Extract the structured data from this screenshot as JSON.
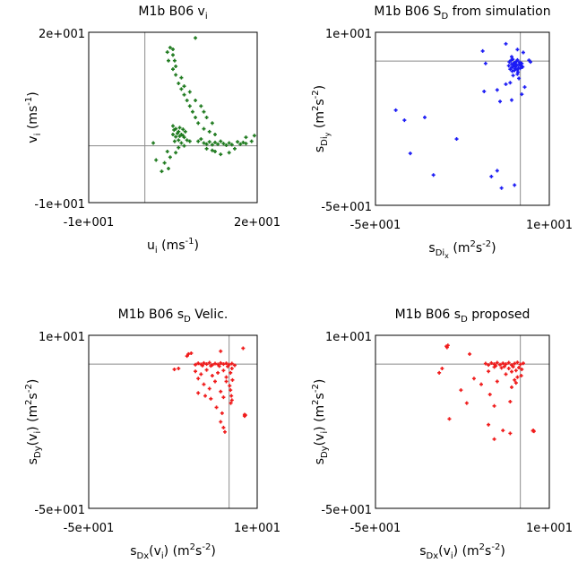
{
  "chart_data": [
    {
      "type": "scatter",
      "title": "M1b B06 vᵢ",
      "xlabel": "uᵢ (ms⁻¹)",
      "ylabel": "vᵢ (ms⁻¹)",
      "xlim": [
        -10,
        20
      ],
      "ylim": [
        -10,
        20
      ],
      "x_ticks": [
        "-1e+001",
        "2e+001"
      ],
      "y_ticks": [
        "-1e+001",
        "2e+001"
      ],
      "ref_lines": {
        "x": 0,
        "y": 0
      },
      "color": "#1e7a1e",
      "points": [
        [
          5.0,
          17.0
        ],
        [
          5.0,
          16.0
        ],
        [
          5.3,
          15.0
        ],
        [
          5.0,
          13.5
        ],
        [
          5.5,
          12.5
        ],
        [
          6.0,
          11.0
        ],
        [
          6.5,
          10.0
        ],
        [
          7.0,
          9.0
        ],
        [
          7.5,
          8.0
        ],
        [
          8.0,
          7.0
        ],
        [
          8.5,
          6.0
        ],
        [
          9.0,
          5.0
        ],
        [
          9.5,
          4.0
        ],
        [
          10.5,
          3.0
        ],
        [
          11.5,
          2.5
        ],
        [
          12.5,
          2.0
        ],
        [
          9.0,
          19.0
        ],
        [
          4.5,
          17.3
        ],
        [
          4.0,
          16.5
        ],
        [
          4.2,
          15.0
        ],
        [
          5.5,
          14.0
        ],
        [
          6.5,
          12.0
        ],
        [
          7.0,
          10.5
        ],
        [
          8.0,
          9.5
        ],
        [
          9.0,
          8.0
        ],
        [
          10.0,
          7.0
        ],
        [
          10.5,
          6.0
        ],
        [
          11.0,
          5.0
        ],
        [
          12.0,
          4.0
        ],
        [
          5.0,
          3.5
        ],
        [
          5.5,
          3.0
        ],
        [
          6.0,
          2.5
        ],
        [
          6.5,
          2.0
        ],
        [
          7.0,
          1.5
        ],
        [
          5.2,
          2.8
        ],
        [
          5.8,
          2.2
        ],
        [
          6.2,
          3.2
        ],
        [
          6.8,
          1.8
        ],
        [
          7.2,
          2.5
        ],
        [
          5.5,
          1.6
        ],
        [
          6.0,
          1.0
        ],
        [
          5.3,
          0.8
        ],
        [
          6.5,
          0.5
        ],
        [
          7.5,
          1.0
        ],
        [
          8.0,
          0.8
        ],
        [
          6.2,
          1.7
        ],
        [
          6.8,
          2.9
        ],
        [
          5.0,
          2.0
        ],
        [
          9.5,
          0.8
        ],
        [
          10.5,
          0.5
        ],
        [
          11.0,
          0.3
        ],
        [
          11.5,
          0.7
        ],
        [
          12.0,
          0.2
        ],
        [
          12.5,
          0.6
        ],
        [
          13.0,
          0.3
        ],
        [
          13.5,
          0.8
        ],
        [
          14.0,
          0.4
        ],
        [
          14.5,
          0.1
        ],
        [
          15.0,
          0.5
        ],
        [
          15.5,
          0.2
        ],
        [
          16.5,
          0.7
        ],
        [
          17.0,
          0.3
        ],
        [
          17.5,
          0.6
        ],
        [
          18.0,
          0.4
        ],
        [
          11.0,
          -0.5
        ],
        [
          12.5,
          -1.0
        ],
        [
          13.5,
          -1.5
        ],
        [
          15.0,
          -1.2
        ],
        [
          16.0,
          -0.5
        ],
        [
          12.0,
          -0.8
        ],
        [
          19.5,
          1.8
        ],
        [
          18.0,
          1.5
        ],
        [
          19.0,
          0.8
        ],
        [
          10.0,
          1.2
        ],
        [
          3.0,
          -4.5
        ],
        [
          3.5,
          -3.0
        ],
        [
          4.5,
          -2.0
        ],
        [
          4.0,
          -1.0
        ],
        [
          1.5,
          0.5
        ],
        [
          2.0,
          -2.5
        ],
        [
          4.2,
          -4.0
        ],
        [
          5.5,
          -1.2
        ],
        [
          7.0,
          0.0
        ],
        [
          6.0,
          -0.3
        ]
      ]
    },
    {
      "type": "scatter",
      "title": "M1b B06 S_D from simulation",
      "title_main": "M1b B06 S",
      "title_sub": "D",
      "title_tail": " from simulation",
      "xlabel": "s_Di_x (m²s⁻²)",
      "ylabel": "s_Di_y (m²s⁻²)",
      "xlim": [
        -50,
        10
      ],
      "ylim": [
        -50,
        10
      ],
      "x_ticks": [
        "-5e+001",
        "1e+001"
      ],
      "y_ticks": [
        "-5e+001",
        "1e+001"
      ],
      "ref_lines": {
        "x": 0,
        "y": 0
      },
      "color": "#1b1bf5",
      "points": [
        [
          -3.0,
          -1.0
        ],
        [
          -2.5,
          -2.0
        ],
        [
          -2.0,
          -0.5
        ],
        [
          -1.5,
          -1.8
        ],
        [
          -1.0,
          -3.0
        ],
        [
          -0.5,
          -1.2
        ],
        [
          0.0,
          -2.5
        ],
        [
          0.5,
          -0.8
        ],
        [
          -3.5,
          -2.8
        ],
        [
          -2.8,
          -3.5
        ],
        [
          -1.8,
          -2.6
        ],
        [
          -1.2,
          0.0
        ],
        [
          -0.8,
          -3.8
        ],
        [
          0.3,
          -1.6
        ],
        [
          -2.2,
          -1.3
        ],
        [
          -1.6,
          -0.9
        ],
        [
          -3.2,
          0.3
        ],
        [
          -0.2,
          -0.4
        ],
        [
          -2.6,
          0.6
        ],
        [
          -1.0,
          0.4
        ],
        [
          -3.8,
          -0.3
        ],
        [
          -4.0,
          -1.6
        ],
        [
          -2.0,
          -3.2
        ],
        [
          0.8,
          -2.0
        ],
        [
          -0.6,
          -2.4
        ],
        [
          -1.4,
          -1.5
        ],
        [
          -3.0,
          -2.2
        ],
        [
          -2.4,
          -1.0
        ],
        [
          -1.0,
          4.0
        ],
        [
          1.0,
          3.0
        ],
        [
          3.0,
          0.3
        ],
        [
          -13.0,
          3.5
        ],
        [
          -5.0,
          6.0
        ],
        [
          -12.0,
          -0.8
        ],
        [
          3.5,
          -0.3
        ],
        [
          -3.0,
          1.5
        ],
        [
          -2.5,
          -5.0
        ],
        [
          -1.0,
          -4.5
        ],
        [
          -0.5,
          -6.0
        ],
        [
          -3.5,
          -7.5
        ],
        [
          -5.0,
          -8.0
        ],
        [
          1.5,
          -9.0
        ],
        [
          -8.0,
          -10.0
        ],
        [
          0.5,
          -11.5
        ],
        [
          -3.0,
          -13.5
        ],
        [
          -7.0,
          -14.0
        ],
        [
          -12.5,
          -10.5
        ],
        [
          -43.0,
          -17.0
        ],
        [
          -40.0,
          -20.5
        ],
        [
          -33.0,
          -19.5
        ],
        [
          -22.0,
          -27.0
        ],
        [
          -38.0,
          -32.0
        ],
        [
          -30.0,
          -39.5
        ],
        [
          -8.0,
          -38.0
        ],
        [
          -10.0,
          -40.0
        ],
        [
          -6.5,
          -44.0
        ],
        [
          -2.0,
          -43.0
        ]
      ]
    },
    {
      "type": "scatter",
      "title": "M1b B06 s_D Velic.",
      "title_main": "M1b B06 s",
      "title_sub": "D",
      "title_tail": " Velic.",
      "xlabel": "s_Dx(v_i) (m²s⁻²)",
      "ylabel": "s_Dy(v_i) (m²s⁻²)",
      "xlim": [
        -50,
        10
      ],
      "ylim": [
        -50,
        10
      ],
      "x_ticks": [
        "-5e+001",
        "1e+001"
      ],
      "y_ticks": [
        "-5e+001",
        "1e+001"
      ],
      "ref_lines": {
        "x": 0,
        "y": 0
      },
      "color": "#f01a1a",
      "points": [
        [
          -14.5,
          3.5
        ],
        [
          -13.5,
          3.8
        ],
        [
          -15.0,
          2.8
        ],
        [
          -3.0,
          4.5
        ],
        [
          5.0,
          5.5
        ],
        [
          -18.0,
          -1.5
        ],
        [
          -19.5,
          -1.8
        ],
        [
          -12.0,
          -0.2
        ],
        [
          -11.0,
          0.3
        ],
        [
          -10.0,
          -0.1
        ],
        [
          -9.0,
          0.4
        ],
        [
          -8.0,
          0.0
        ],
        [
          -7.0,
          0.5
        ],
        [
          -6.0,
          -0.3
        ],
        [
          -5.0,
          0.2
        ],
        [
          -4.0,
          -0.1
        ],
        [
          -3.0,
          0.4
        ],
        [
          -2.0,
          0.0
        ],
        [
          -1.0,
          0.3
        ],
        [
          0.0,
          -0.2
        ],
        [
          1.0,
          0.2
        ],
        [
          2.0,
          -0.4
        ],
        [
          -9.5,
          -0.5
        ],
        [
          -6.5,
          -0.6
        ],
        [
          -3.5,
          -0.7
        ],
        [
          -0.5,
          -0.8
        ],
        [
          -12.0,
          -2.5
        ],
        [
          -10.0,
          -3.5
        ],
        [
          -8.0,
          -2.0
        ],
        [
          -6.0,
          -4.0
        ],
        [
          -4.0,
          -3.0
        ],
        [
          -2.0,
          -2.2
        ],
        [
          -1.0,
          -4.5
        ],
        [
          -11.0,
          -5.0
        ],
        [
          -9.0,
          -7.0
        ],
        [
          -7.0,
          -8.5
        ],
        [
          -5.0,
          -6.0
        ],
        [
          -3.0,
          -9.5
        ],
        [
          -2.0,
          -11.5
        ],
        [
          -6.5,
          -12.0
        ],
        [
          -4.5,
          -15.0
        ],
        [
          -2.5,
          -17.0
        ],
        [
          -3.0,
          -20.0
        ],
        [
          -2.0,
          -22.0
        ],
        [
          -1.5,
          -23.5
        ],
        [
          -11.0,
          -10.0
        ],
        [
          -8.5,
          -11.0
        ],
        [
          -1.0,
          -6.0
        ],
        [
          0.2,
          -7.5
        ],
        [
          0.5,
          -9.0
        ],
        [
          0.8,
          -11.0
        ],
        [
          1.0,
          -12.5
        ],
        [
          0.6,
          -13.5
        ],
        [
          1.2,
          -5.5
        ],
        [
          0.5,
          -3.0
        ],
        [
          1.0,
          -1.5
        ],
        [
          5.5,
          -17.5
        ],
        [
          5.5,
          -18.0
        ],
        [
          5.8,
          -17.7
        ]
      ]
    },
    {
      "type": "scatter",
      "title": "M1b B06 s_D proposed",
      "title_main": "M1b B06 s",
      "title_sub": "D",
      "title_tail": " proposed",
      "xlabel": "s_Dx(v_i) (m²s⁻²)",
      "ylabel": "s_Dy(v_i) (m²s⁻²)",
      "xlim": [
        -50,
        10
      ],
      "ylim": [
        -50,
        10
      ],
      "x_ticks": [
        "-5e+001",
        "1e+001"
      ],
      "y_ticks": [
        "-5e+001",
        "1e+001"
      ],
      "ref_lines": {
        "x": 0,
        "y": 0
      },
      "color": "#f01a1a",
      "points": [
        [
          -25.5,
          6.2
        ],
        [
          -25.0,
          6.5
        ],
        [
          -25.3,
          5.8
        ],
        [
          -17.5,
          3.5
        ],
        [
          -27.0,
          -1.5
        ],
        [
          -28.0,
          -3.0
        ],
        [
          -12.0,
          0.2
        ],
        [
          -11.0,
          -0.3
        ],
        [
          -10.0,
          0.4
        ],
        [
          -9.0,
          0.0
        ],
        [
          -8.0,
          0.5
        ],
        [
          -7.0,
          -0.2
        ],
        [
          -6.0,
          0.3
        ],
        [
          -5.0,
          0.0
        ],
        [
          -4.0,
          0.5
        ],
        [
          -3.0,
          -0.3
        ],
        [
          -2.0,
          0.2
        ],
        [
          -1.0,
          0.6
        ],
        [
          0.0,
          -0.1
        ],
        [
          1.0,
          0.3
        ],
        [
          -8.5,
          -0.6
        ],
        [
          -5.5,
          -0.8
        ],
        [
          -2.5,
          -0.9
        ],
        [
          -0.5,
          -1.2
        ],
        [
          -4.0,
          -1.5
        ],
        [
          -1.5,
          -2.2
        ],
        [
          -3.0,
          -2.6
        ],
        [
          0.5,
          -1.8
        ],
        [
          -6.5,
          -1.3
        ],
        [
          -9.0,
          -1.0
        ],
        [
          -11.0,
          -2.5
        ],
        [
          -5.0,
          -3.5
        ],
        [
          -1.0,
          -4.5
        ],
        [
          -16.0,
          -5.0
        ],
        [
          -13.5,
          -7.0
        ],
        [
          -8.0,
          -6.0
        ],
        [
          -3.0,
          -8.0
        ],
        [
          -1.5,
          -6.5
        ],
        [
          -20.5,
          -9.0
        ],
        [
          -10.5,
          -10.5
        ],
        [
          -18.5,
          -13.5
        ],
        [
          -9.0,
          -14.5
        ],
        [
          -3.5,
          -13.0
        ],
        [
          -24.5,
          -19.0
        ],
        [
          -11.0,
          -21.0
        ],
        [
          -6.0,
          -23.0
        ],
        [
          -3.5,
          -24.0
        ],
        [
          -9.0,
          -26.0
        ],
        [
          -2.0,
          -5.5
        ],
        [
          0.3,
          -4.0
        ],
        [
          4.5,
          -23.0
        ],
        [
          4.7,
          -23.3
        ],
        [
          4.3,
          -23.1
        ]
      ]
    }
  ]
}
